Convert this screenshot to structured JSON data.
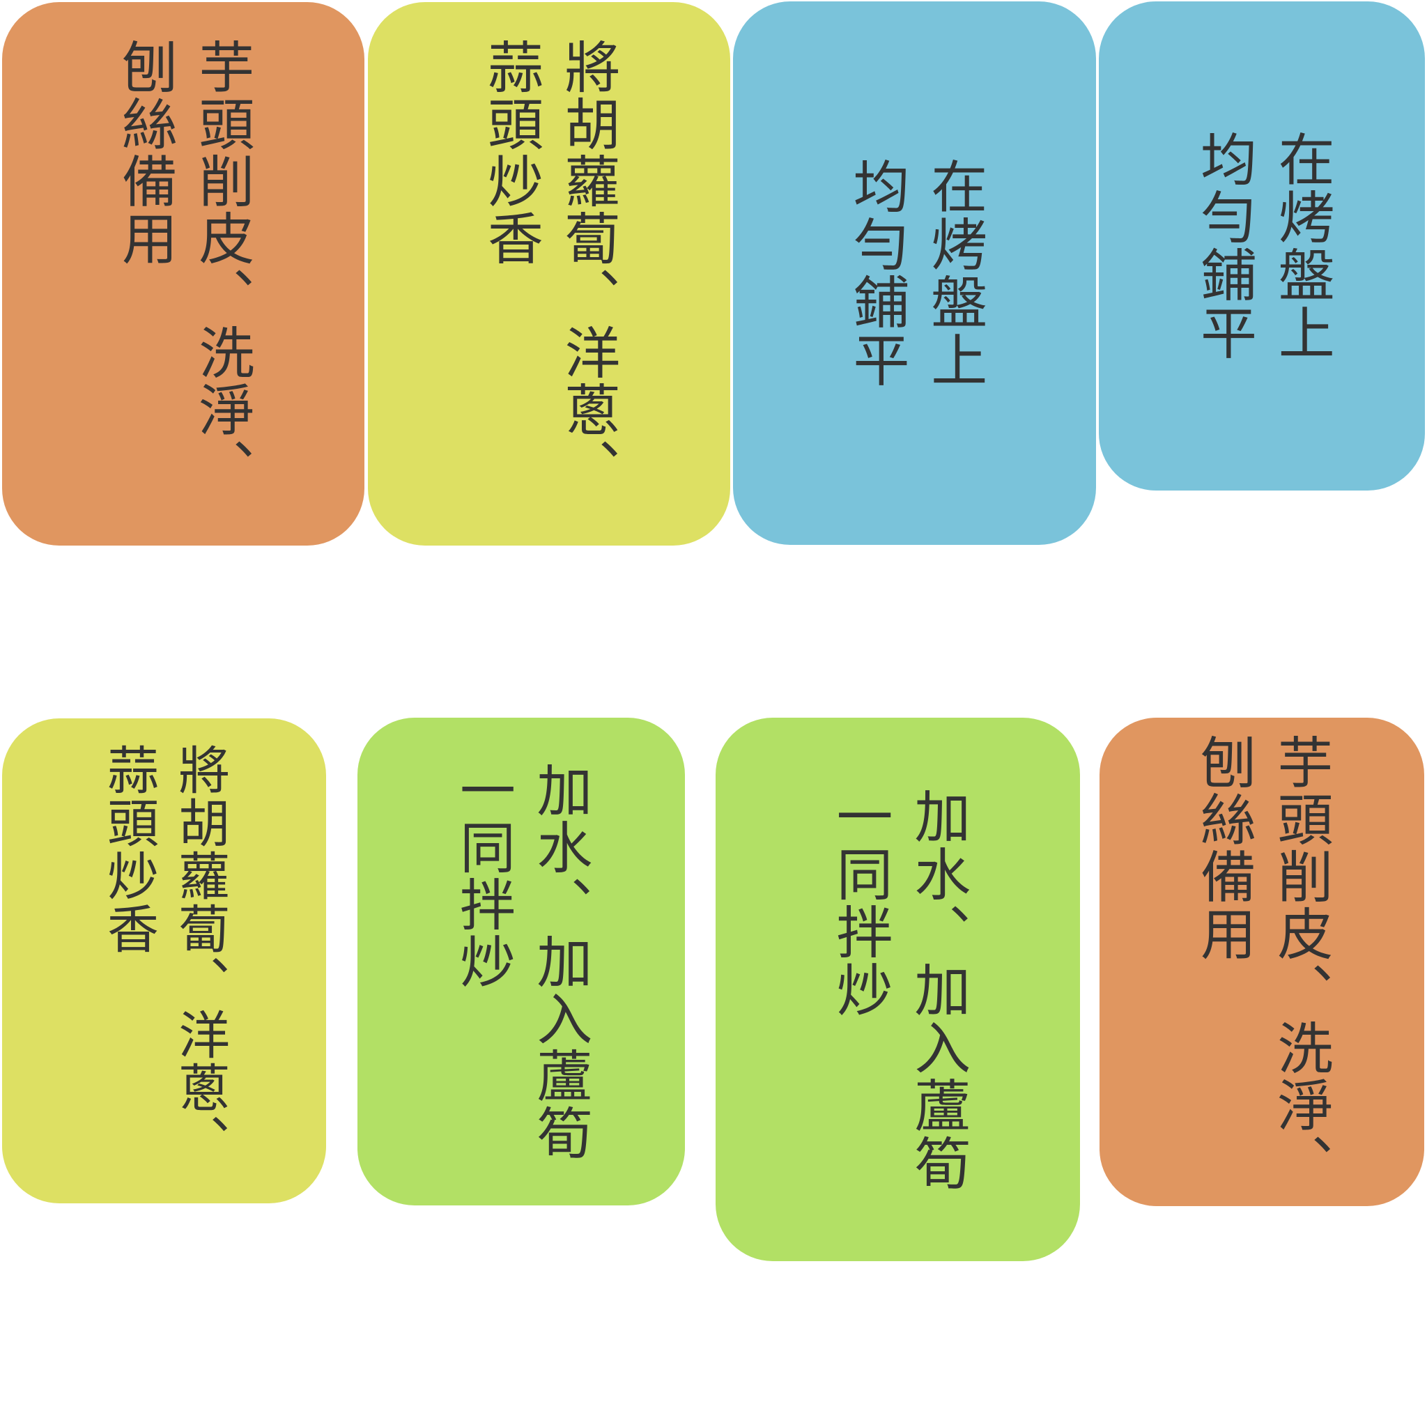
{
  "colors": {
    "orange": "#e09660",
    "yellow": "#dde063",
    "blue": "#7ac3da",
    "green": "#b2e065",
    "text": "#333333",
    "background": "#ffffff"
  },
  "cards": [
    {
      "color": "orange",
      "lines": [
        "芋頭削皮、洗淨、",
        "刨絲備用"
      ]
    },
    {
      "color": "yellow",
      "lines": [
        "將胡蘿蔔、洋蔥、",
        "蒜頭炒香"
      ]
    },
    {
      "color": "blue",
      "lines": [
        "在烤盤上",
        "均勻鋪平"
      ]
    },
    {
      "color": "blue",
      "lines": [
        "在烤盤上",
        "均勻鋪平"
      ]
    },
    {
      "color": "yellow",
      "lines": [
        "將胡蘿蔔、洋蔥、",
        "蒜頭炒香"
      ]
    },
    {
      "color": "green",
      "lines": [
        "加水、加入蘆筍",
        "一同拌炒"
      ]
    },
    {
      "color": "green",
      "lines": [
        "加水、加入蘆筍",
        "一同拌炒"
      ]
    },
    {
      "color": "orange",
      "lines": [
        "芋頭削皮、洗淨、",
        "刨絲備用"
      ]
    }
  ]
}
